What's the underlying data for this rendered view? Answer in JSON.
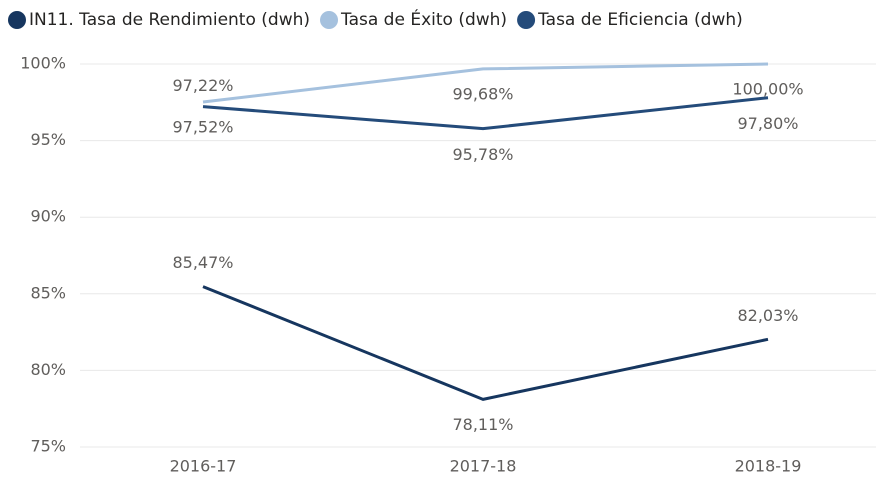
{
  "chart_data": {
    "type": "line",
    "categories": [
      "2016-17",
      "2017-18",
      "2018-19"
    ],
    "series": [
      {
        "name": "IN11. Tasa de Rendimiento (dwh)",
        "color": "#16365f",
        "values": [
          85.47,
          78.11,
          82.03
        ],
        "value_labels": [
          "85,47%",
          "78,11%",
          "82,03%"
        ]
      },
      {
        "name": "Tasa de Éxito (dwh)",
        "color": "#a5c1de",
        "values": [
          97.52,
          99.68,
          100.0
        ],
        "value_labels": [
          "97,52%",
          "99,68%",
          "100,00%"
        ]
      },
      {
        "name": "Tasa de Eficiencia (dwh)",
        "color": "#244b7a",
        "values": [
          97.22,
          95.78,
          97.8
        ],
        "value_labels": [
          "97,22%",
          "95,78%",
          "97,80%"
        ]
      }
    ],
    "ylim": [
      75,
      100
    ],
    "yticks": [
      {
        "value": 75,
        "label": "75%"
      },
      {
        "value": 80,
        "label": "80%"
      },
      {
        "value": 85,
        "label": "85%"
      },
      {
        "value": 90,
        "label": "90%"
      },
      {
        "value": 95,
        "label": "95%"
      },
      {
        "value": 100,
        "label": "100%"
      }
    ],
    "grid": true,
    "legend": "top-left"
  }
}
